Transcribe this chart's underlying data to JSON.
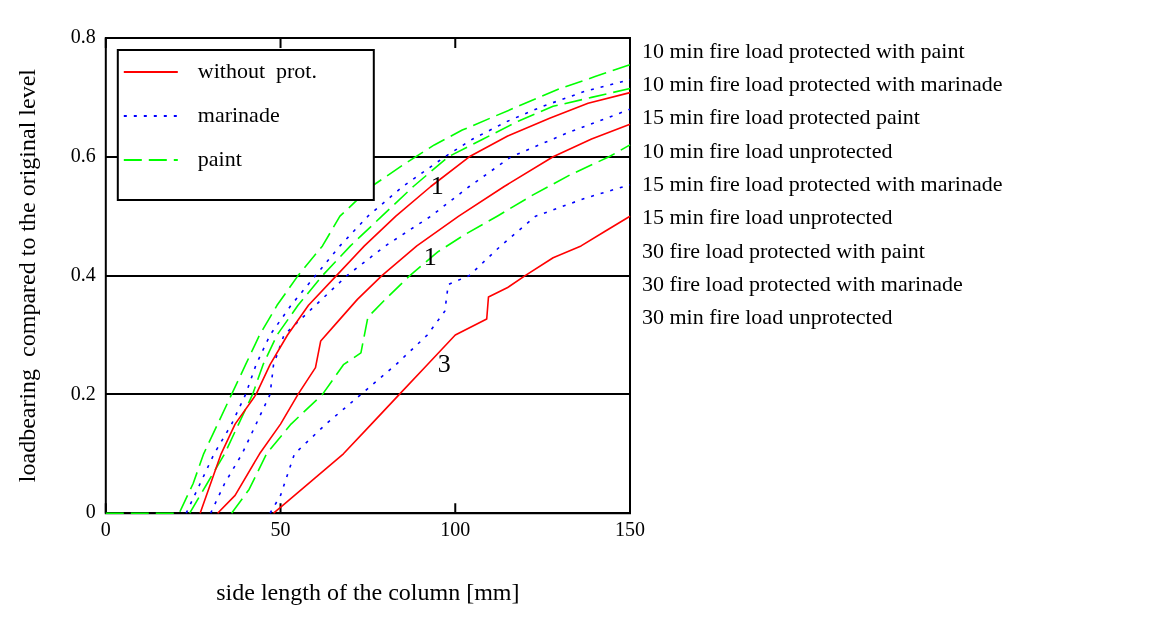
{
  "chart_data": {
    "type": "line",
    "xlabel": "side length of the column [mm]",
    "ylabel": "loadbearing  compared to the original level",
    "xlim": [
      0,
      150
    ],
    "xticks": [
      0,
      50,
      100,
      150
    ],
    "ylim": [
      0,
      0.8
    ],
    "yticks": [
      0,
      0.2,
      0.4,
      0.6,
      0.8
    ],
    "grid": "y",
    "legend": "top left",
    "marker": "none",
    "series": [
      {
        "name": "without  prot.",
        "color": "#ff0000",
        "line_style": "solid",
        "x": [
          27,
          30,
          33,
          37,
          43,
          47,
          52,
          58,
          66,
          74,
          83,
          93,
          104,
          115,
          127,
          138,
          150
        ],
        "values": [
          0,
          0.05,
          0.1,
          0.15,
          0.2,
          0.25,
          0.3,
          0.35,
          0.4,
          0.45,
          0.5,
          0.55,
          0.6,
          0.635,
          0.665,
          0.69,
          0.708
        ]
      },
      {
        "name": "marinade",
        "color": "#0000ff",
        "line_style": "dotted",
        "x": [
          23,
          27,
          31,
          36,
          40,
          43,
          47,
          53,
          60,
          67,
          75,
          85,
          97,
          105,
          115,
          125,
          137,
          150
        ],
        "values": [
          0,
          0.05,
          0.1,
          0.15,
          0.2,
          0.25,
          0.3,
          0.35,
          0.4,
          0.45,
          0.5,
          0.55,
          0.6,
          0.63,
          0.66,
          0.685,
          0.71,
          0.73
        ]
      },
      {
        "name": "paint",
        "color": "#00ff00",
        "line_style": "dashed",
        "x": [
          0,
          21,
          25,
          28,
          32,
          36,
          40,
          44,
          49,
          55,
          62,
          67,
          76,
          86,
          94,
          102,
          110,
          120,
          130,
          140,
          150
        ],
        "values": [
          0,
          0,
          0.05,
          0.1,
          0.15,
          0.2,
          0.25,
          0.3,
          0.35,
          0.4,
          0.45,
          0.5,
          0.55,
          0.59,
          0.62,
          0.645,
          0.665,
          0.69,
          0.715,
          0.735,
          0.755
        ]
      },
      {
        "color": "#ff0000",
        "line_style": "solid",
        "x": [
          32,
          37,
          44,
          50,
          55,
          60,
          61.5,
          66,
          72,
          79,
          89,
          101,
          114,
          128,
          139,
          150
        ],
        "values": [
          0,
          0.03,
          0.1,
          0.15,
          0.2,
          0.245,
          0.29,
          0.32,
          0.36,
          0.4,
          0.45,
          0.5,
          0.55,
          0.6,
          0.63,
          0.655
        ]
      },
      {
        "color": "#0000ff",
        "line_style": "dotted",
        "x": [
          30,
          34,
          39,
          43,
          47,
          48,
          51,
          60,
          69,
          80,
          93,
          104,
          116,
          132,
          150
        ],
        "values": [
          0,
          0.05,
          0.1,
          0.15,
          0.2,
          0.25,
          0.3,
          0.35,
          0.4,
          0.45,
          0.5,
          0.55,
          0.6,
          0.64,
          0.68
        ]
      },
      {
        "color": "#00ff00",
        "line_style": "dashed",
        "x": [
          24,
          29,
          34,
          38,
          42,
          45,
          49,
          55,
          62,
          70,
          79,
          88,
          98,
          108,
          118,
          128,
          139,
          150
        ],
        "values": [
          0,
          0.05,
          0.1,
          0.15,
          0.2,
          0.25,
          0.3,
          0.35,
          0.4,
          0.45,
          0.5,
          0.55,
          0.6,
          0.63,
          0.66,
          0.685,
          0.7,
          0.715
        ]
      },
      {
        "color": "#ff0000",
        "line_style": "solid",
        "x": [
          48,
          52,
          60,
          68,
          76,
          84,
          92,
          100,
          109,
          109.5,
          115,
          120,
          128,
          136,
          143,
          150
        ],
        "values": [
          0,
          0.02,
          0.06,
          0.1,
          0.15,
          0.2,
          0.25,
          0.3,
          0.327,
          0.364,
          0.38,
          0.4,
          0.43,
          0.45,
          0.475,
          0.5
        ]
      },
      {
        "color": "#0000ff",
        "line_style": "dotted",
        "x": [
          47,
          50,
          54,
          63,
          73,
          83,
          92,
          97,
          98,
          104,
          113,
          123,
          137,
          150
        ],
        "values": [
          0,
          0.03,
          0.1,
          0.15,
          0.2,
          0.25,
          0.3,
          0.34,
          0.385,
          0.4,
          0.45,
          0.5,
          0.53,
          0.553
        ]
      },
      {
        "color": "#00ff00",
        "line_style": "dashed",
        "x": [
          36,
          41,
          46,
          53,
          62,
          68,
          73,
          75,
          80,
          87,
          95,
          103,
          112,
          122,
          133,
          144,
          150
        ],
        "values": [
          0,
          0.04,
          0.1,
          0.15,
          0.2,
          0.25,
          0.27,
          0.33,
          0.36,
          0.4,
          0.44,
          0.47,
          0.5,
          0.535,
          0.57,
          0.6,
          0.62
        ]
      }
    ],
    "annotations": [
      "10 min fire load protected with paint",
      "10 min fire load protected with marinade",
      "15 min fire load protected paint",
      "10 min fire load unprotected",
      "15 min fire load protected with marinade",
      "15 min fire load unprotected",
      "30 fire load protected with paint",
      "30 fire load protected with marinade",
      "30 min fire load unprotected",
      {
        "text": "1",
        "x": 96,
        "y": 0.59
      },
      {
        "text": "1",
        "x": 94,
        "y": 0.47
      },
      {
        "text": "3",
        "x": 98,
        "y": 0.29
      }
    ]
  }
}
